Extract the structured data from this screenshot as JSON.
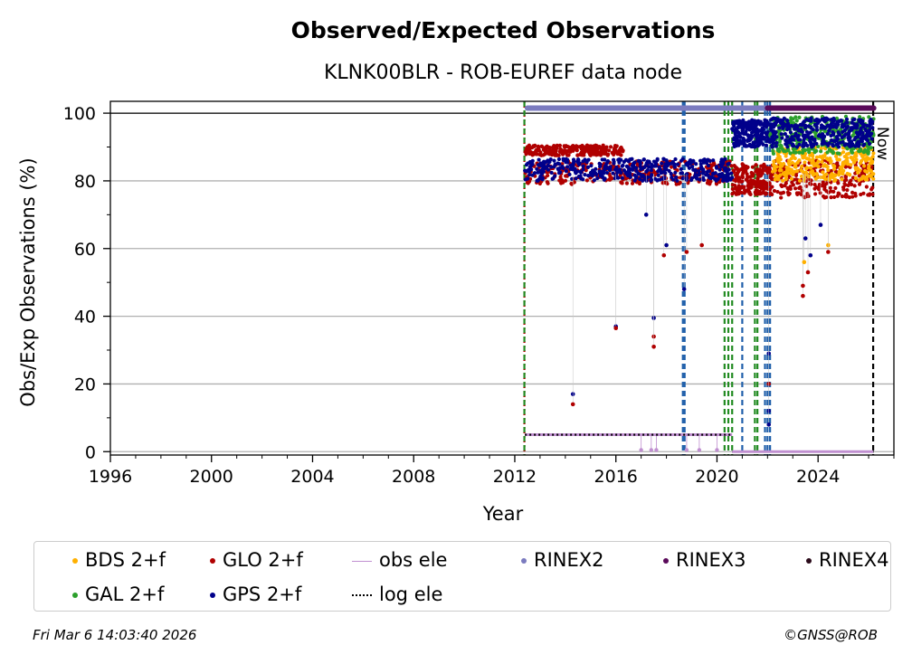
{
  "chart_data": {
    "type": "scatter",
    "title": "Observed/Expected Observations",
    "subtitle": "KLNK00BLR - ROB-EUREF data node",
    "xlabel": "Year",
    "ylabel": "Obs/Exp Observations (%)",
    "xlim": [
      1996,
      2027.0
    ],
    "ylim": [
      -1,
      103.5
    ],
    "xticks": [
      "1996",
      "2000",
      "2004",
      "2008",
      "2012",
      "2016",
      "2020",
      "2024"
    ],
    "xtick_values": [
      1996,
      2000,
      2004,
      2008,
      2012,
      2016,
      2020,
      2024
    ],
    "yticks": [
      "0",
      "20",
      "40",
      "60",
      "80",
      "100"
    ],
    "ytick_values": [
      0,
      20,
      40,
      60,
      80,
      100
    ],
    "grid": "horizontal",
    "legend_placement": "bottom",
    "annotation_now": "Now",
    "series": [
      {
        "name": "BDS 2+f",
        "color": "#ffb000",
        "marker": "dot",
        "x_range": [
          2022.1,
          2026.2
        ],
        "y_band": [
          80,
          90
        ]
      },
      {
        "name": "GAL 2+f",
        "color": "#2ca02c",
        "marker": "dot",
        "x_range": [
          2022.1,
          2026.2
        ],
        "y_band": [
          88,
          99
        ]
      },
      {
        "name": "GLO 2+f",
        "color": "#b00000",
        "marker": "dot",
        "x_range": [
          2012.4,
          2026.2
        ],
        "y_band": [
          77,
          90
        ]
      },
      {
        "name": "GPS 2+f",
        "color": "#00008b",
        "marker": "dot",
        "x_range": [
          2012.4,
          2026.2
        ],
        "y_band": [
          80,
          98
        ]
      },
      {
        "name": "obs ele",
        "color": "#c090d0",
        "marker": "line-dot",
        "x_range": [
          2012.4,
          2020.6
        ],
        "y": 5
      },
      {
        "name": "log ele",
        "color": "#000000",
        "marker": "dotted-line",
        "segments": [
          [
            2012.4,
            2020.6,
            5
          ],
          [
            2020.6,
            2026.2,
            0
          ]
        ]
      },
      {
        "name": "RINEX2",
        "color": "#7b7bbf",
        "marker": "dot",
        "x_range": [
          2012.5,
          2022.0
        ],
        "y": 101.5
      },
      {
        "name": "RINEX3",
        "color": "#5a0a5a",
        "marker": "dot",
        "x_range": [
          2022.0,
          2026.2
        ],
        "y": 101.5
      },
      {
        "name": "RINEX4",
        "color": "#2a0a1a",
        "marker": "dot",
        "x_range": [],
        "y": 101.5
      }
    ],
    "outliers": [
      {
        "x": 2014.3,
        "y": 17,
        "series": "GPS 2+f"
      },
      {
        "x": 2014.3,
        "y": 14,
        "series": "GLO 2+f"
      },
      {
        "x": 2016.0,
        "y": 37,
        "series": "GPS 2+f"
      },
      {
        "x": 2016.0,
        "y": 36.5,
        "series": "GLO 2+f"
      },
      {
        "x": 2017.5,
        "y": 39.5,
        "series": "GPS 2+f"
      },
      {
        "x": 2017.5,
        "y": 34,
        "series": "GLO 2+f"
      },
      {
        "x": 2017.5,
        "y": 31,
        "series": "GLO 2+f"
      },
      {
        "x": 2017.2,
        "y": 70,
        "series": "GPS 2+f"
      },
      {
        "x": 2018.0,
        "y": 61,
        "series": "GPS 2+f"
      },
      {
        "x": 2017.9,
        "y": 58,
        "series": "GLO 2+f"
      },
      {
        "x": 2018.7,
        "y": 48,
        "series": "GPS 2+f"
      },
      {
        "x": 2018.8,
        "y": 59,
        "series": "GLO 2+f"
      },
      {
        "x": 2019.4,
        "y": 61,
        "series": "GLO 2+f"
      },
      {
        "x": 2022.05,
        "y": 29,
        "series": "GPS 2+f"
      },
      {
        "x": 2022.05,
        "y": 20,
        "series": "GLO 2+f"
      },
      {
        "x": 2022.05,
        "y": 12,
        "series": "GPS 2+f"
      },
      {
        "x": 2022.05,
        "y": 8,
        "series": "GPS 2+f"
      },
      {
        "x": 2023.4,
        "y": 46,
        "series": "GLO 2+f"
      },
      {
        "x": 2023.4,
        "y": 49,
        "series": "GLO 2+f"
      },
      {
        "x": 2023.45,
        "y": 56,
        "series": "BDS 2+f"
      },
      {
        "x": 2023.5,
        "y": 63,
        "series": "GPS 2+f"
      },
      {
        "x": 2023.6,
        "y": 53,
        "series": "GLO 2+f"
      },
      {
        "x": 2023.7,
        "y": 58,
        "series": "GPS 2+f"
      },
      {
        "x": 2024.4,
        "y": 61,
        "series": "BDS 2+f"
      },
      {
        "x": 2024.4,
        "y": 59,
        "series": "GLO 2+f"
      },
      {
        "x": 2024.1,
        "y": 67,
        "series": "GPS 2+f"
      }
    ],
    "event_lines": [
      {
        "x": 2012.38,
        "color": "#b00000",
        "style": "dotted"
      },
      {
        "x": 2012.38,
        "color": "#228b22",
        "style": "dashed"
      },
      {
        "x": 2018.65,
        "color": "#1f5faa",
        "style": "dashed"
      },
      {
        "x": 2018.72,
        "color": "#1f5faa",
        "style": "dashed"
      },
      {
        "x": 2020.3,
        "color": "#228b22",
        "style": "dashed"
      },
      {
        "x": 2020.45,
        "color": "#228b22",
        "style": "dashed"
      },
      {
        "x": 2020.6,
        "color": "#228b22",
        "style": "dashed"
      },
      {
        "x": 2021.0,
        "color": "#1f5faa",
        "style": "dashed"
      },
      {
        "x": 2021.5,
        "color": "#228b22",
        "style": "dashed"
      },
      {
        "x": 2021.6,
        "color": "#228b22",
        "style": "dashed"
      },
      {
        "x": 2021.9,
        "color": "#1f5faa",
        "style": "dashed"
      },
      {
        "x": 2022.0,
        "color": "#1f5faa",
        "style": "dashed"
      },
      {
        "x": 2022.1,
        "color": "#1f5faa",
        "style": "dashed"
      },
      {
        "x": 2026.18,
        "color": "#000000",
        "style": "dashed"
      }
    ]
  },
  "footer": {
    "timestamp": "Fri Mar  6 14:03:40 2026",
    "copyright": "©GNSS@ROB"
  }
}
